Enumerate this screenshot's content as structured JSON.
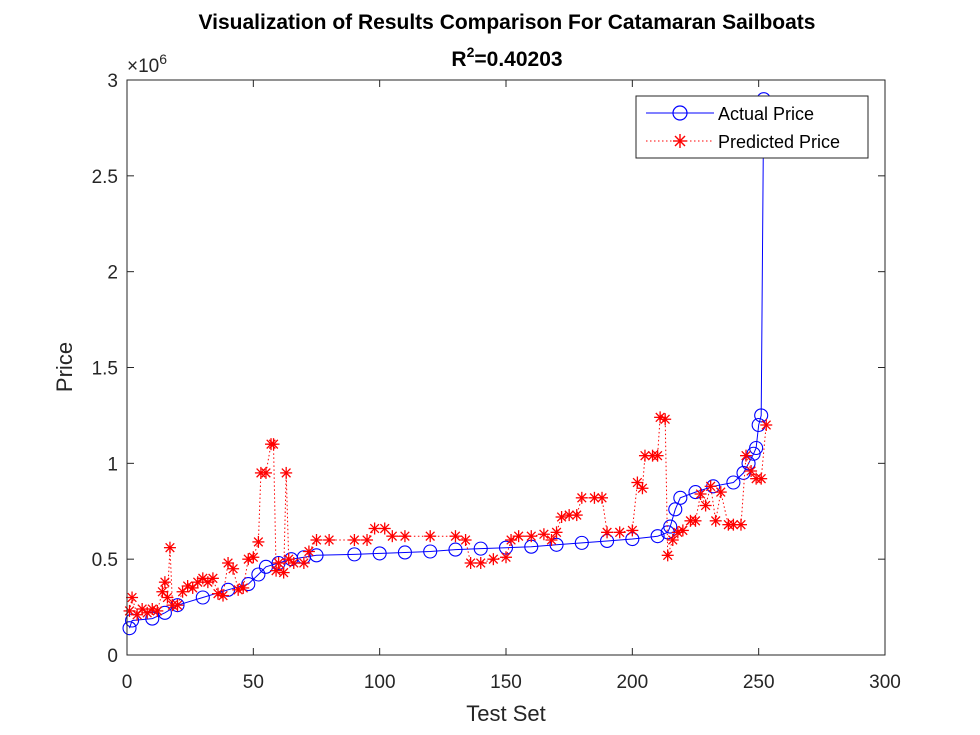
{
  "chart_data": {
    "type": "line",
    "title": "Visualization of Results Comparison For Catamaran Sailboats",
    "subtitle": {
      "prefix": "R",
      "sup": "2",
      "suffix": "=0.40203"
    },
    "xlabel": "Test Set",
    "ylabel": "Price",
    "xlim": [
      0,
      300
    ],
    "ylim": [
      0,
      3000000
    ],
    "xticks": [
      0,
      50,
      100,
      150,
      200,
      250,
      300
    ],
    "yticks": [
      0,
      500000,
      1000000,
      1500000,
      2000000,
      2500000,
      3000000
    ],
    "xtick_labels": [
      "0",
      "50",
      "100",
      "150",
      "200",
      "250",
      "300"
    ],
    "ytick_labels": [
      "0",
      "0.5",
      "1",
      "1.5",
      "2",
      "2.5",
      "3"
    ],
    "y_exponent": {
      "base": "×10",
      "exp": "6"
    },
    "grid": false,
    "legend_position": "top-right",
    "series": [
      {
        "name": "Actual Price",
        "marker": "circle",
        "line": "solid",
        "color": "#0000ff",
        "points": [
          [
            1,
            140000
          ],
          [
            2,
            180000
          ],
          [
            10,
            190000
          ],
          [
            15,
            220000
          ],
          [
            20,
            260000
          ],
          [
            30,
            300000
          ],
          [
            40,
            340000
          ],
          [
            48,
            370000
          ],
          [
            52,
            420000
          ],
          [
            55,
            460000
          ],
          [
            60,
            480000
          ],
          [
            65,
            500000
          ],
          [
            70,
            510000
          ],
          [
            75,
            520000
          ],
          [
            90,
            525000
          ],
          [
            100,
            530000
          ],
          [
            110,
            535000
          ],
          [
            120,
            540000
          ],
          [
            130,
            550000
          ],
          [
            140,
            555000
          ],
          [
            150,
            560000
          ],
          [
            160,
            565000
          ],
          [
            170,
            575000
          ],
          [
            180,
            585000
          ],
          [
            190,
            595000
          ],
          [
            200,
            605000
          ],
          [
            210,
            620000
          ],
          [
            214,
            640000
          ],
          [
            215,
            670000
          ],
          [
            217,
            760000
          ],
          [
            219,
            820000
          ],
          [
            225,
            850000
          ],
          [
            232,
            880000
          ],
          [
            240,
            900000
          ],
          [
            244,
            950000
          ],
          [
            246,
            1000000
          ],
          [
            248,
            1050000
          ],
          [
            249,
            1080000
          ],
          [
            250,
            1200000
          ],
          [
            251,
            1250000
          ],
          [
            252,
            2900000
          ]
        ]
      },
      {
        "name": "Predicted Price",
        "marker": "asterisk",
        "line": "dotted",
        "color": "#ff0000",
        "points": [
          [
            1,
            230000
          ],
          [
            2,
            300000
          ],
          [
            4,
            210000
          ],
          [
            6,
            240000
          ],
          [
            8,
            220000
          ],
          [
            10,
            240000
          ],
          [
            12,
            230000
          ],
          [
            14,
            330000
          ],
          [
            15,
            380000
          ],
          [
            16,
            300000
          ],
          [
            17,
            560000
          ],
          [
            18,
            260000
          ],
          [
            20,
            260000
          ],
          [
            22,
            330000
          ],
          [
            24,
            360000
          ],
          [
            26,
            350000
          ],
          [
            28,
            380000
          ],
          [
            30,
            400000
          ],
          [
            32,
            380000
          ],
          [
            34,
            400000
          ],
          [
            36,
            320000
          ],
          [
            38,
            310000
          ],
          [
            40,
            480000
          ],
          [
            42,
            450000
          ],
          [
            44,
            340000
          ],
          [
            46,
            350000
          ],
          [
            48,
            500000
          ],
          [
            50,
            510000
          ],
          [
            52,
            590000
          ],
          [
            53,
            950000
          ],
          [
            55,
            950000
          ],
          [
            57,
            1100000
          ],
          [
            58,
            1100000
          ],
          [
            59,
            440000
          ],
          [
            60,
            480000
          ],
          [
            62,
            430000
          ],
          [
            63,
            950000
          ],
          [
            64,
            500000
          ],
          [
            66,
            480000
          ],
          [
            70,
            480000
          ],
          [
            72,
            540000
          ],
          [
            75,
            600000
          ],
          [
            80,
            600000
          ],
          [
            90,
            600000
          ],
          [
            95,
            600000
          ],
          [
            98,
            660000
          ],
          [
            102,
            660000
          ],
          [
            105,
            620000
          ],
          [
            110,
            620000
          ],
          [
            120,
            620000
          ],
          [
            130,
            620000
          ],
          [
            134,
            600000
          ],
          [
            136,
            480000
          ],
          [
            140,
            480000
          ],
          [
            145,
            500000
          ],
          [
            150,
            510000
          ],
          [
            152,
            600000
          ],
          [
            155,
            620000
          ],
          [
            160,
            620000
          ],
          [
            165,
            630000
          ],
          [
            168,
            600000
          ],
          [
            170,
            640000
          ],
          [
            172,
            720000
          ],
          [
            175,
            730000
          ],
          [
            178,
            730000
          ],
          [
            180,
            820000
          ],
          [
            185,
            820000
          ],
          [
            188,
            820000
          ],
          [
            190,
            640000
          ],
          [
            195,
            640000
          ],
          [
            200,
            650000
          ],
          [
            202,
            900000
          ],
          [
            204,
            870000
          ],
          [
            205,
            1040000
          ],
          [
            208,
            1040000
          ],
          [
            210,
            1040000
          ],
          [
            211,
            1240000
          ],
          [
            213,
            1230000
          ],
          [
            214,
            520000
          ],
          [
            216,
            600000
          ],
          [
            218,
            640000
          ],
          [
            220,
            650000
          ],
          [
            223,
            700000
          ],
          [
            225,
            700000
          ],
          [
            227,
            840000
          ],
          [
            229,
            780000
          ],
          [
            231,
            880000
          ],
          [
            233,
            700000
          ],
          [
            235,
            850000
          ],
          [
            238,
            680000
          ],
          [
            240,
            680000
          ],
          [
            243,
            680000
          ],
          [
            245,
            1040000
          ],
          [
            247,
            960000
          ],
          [
            249,
            920000
          ],
          [
            251,
            920000
          ],
          [
            253,
            1200000
          ]
        ]
      }
    ]
  }
}
